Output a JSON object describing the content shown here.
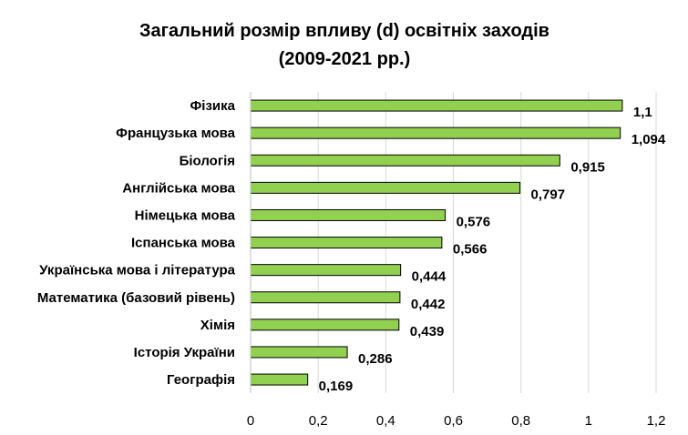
{
  "chart_data": {
    "type": "bar",
    "orientation": "horizontal",
    "title": "Загальний розмір впливу (d) освітніх заходів",
    "subtitle": "(2009-2021 рр.)",
    "xlabel": "",
    "ylabel": "",
    "xlim": [
      0,
      1.2
    ],
    "x_ticks": [
      "0",
      "0,2",
      "0,4",
      "0,6",
      "0,8",
      "1",
      "1,2"
    ],
    "grid": true,
    "legend": "none",
    "bar_color": "#92d050",
    "categories": [
      "Фізика",
      "Французька мова",
      "Біологія",
      "Англійська мова",
      "Німецька мова",
      "Іспанська мова",
      "Українська мова і література",
      "Математика (базовий рівень)",
      "Хімія",
      "Історія України",
      "Географія"
    ],
    "values": [
      1.1,
      1.094,
      0.915,
      0.797,
      0.576,
      0.566,
      0.444,
      0.442,
      0.439,
      0.286,
      0.169
    ],
    "value_labels": [
      "1,1",
      "1,094",
      "0,915",
      "0,797",
      "0,576",
      "0,566",
      "0,444",
      "0,442",
      "0,439",
      "0,286",
      "0,169"
    ]
  }
}
